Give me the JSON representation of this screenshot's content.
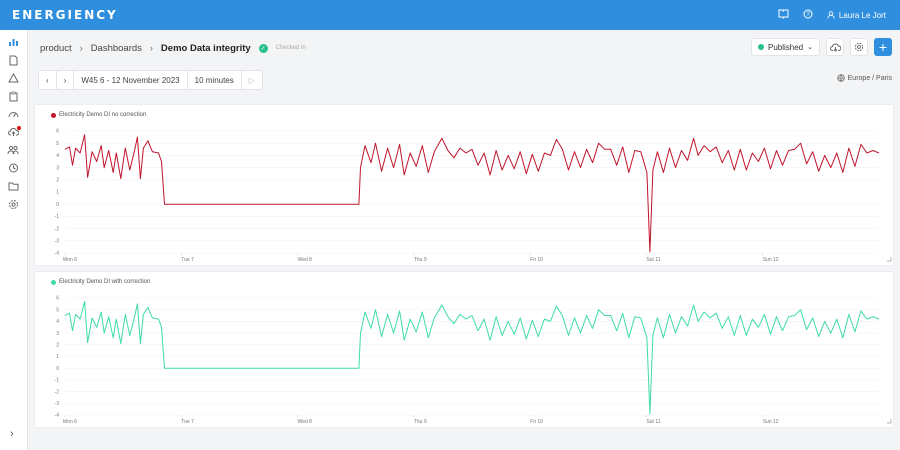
{
  "app": {
    "logo": "ENERGIENCY",
    "help_icon": "question-circle-icon",
    "docs_icon": "book-icon",
    "user_name": "Laura Le Jort"
  },
  "breadcrumb": {
    "items": [
      "product",
      "Dashboards",
      "Demo Data integrity"
    ],
    "status": "Checked in"
  },
  "header": {
    "publish_label": "Published",
    "publish_color": "#27c08a"
  },
  "timebar": {
    "period": "W45 6 - 12 November 2023",
    "interval": "10 minutes",
    "timezone": "Europe / Paris"
  },
  "sidebar": {
    "icons": [
      "dashboard-icon",
      "document-icon",
      "alert-icon",
      "clipboard-icon",
      "gauge-icon",
      "cloud-upload-icon",
      "users-icon",
      "history-icon",
      "folder-icon",
      "settings-icon"
    ]
  },
  "chart_data": [
    {
      "type": "line",
      "series": [
        {
          "name": "Electricity Demo DI no correction",
          "color": "#c0142b"
        }
      ],
      "x_ticks": [
        "Mon 6",
        "Tue 7",
        "Wed 8",
        "Thu 9",
        "Fri 10",
        "Sat 11",
        "Sun 12"
      ],
      "y_ticks": [
        "6",
        "5",
        "4",
        "3",
        "2",
        "1",
        "0",
        "-1",
        "-2",
        "-3",
        "-4"
      ],
      "ylim": [
        -4,
        6
      ],
      "points": [
        [
          0,
          4.5
        ],
        [
          0.3,
          4.7
        ],
        [
          0.5,
          3.2
        ],
        [
          0.7,
          4.6
        ],
        [
          1,
          4.2
        ],
        [
          1.3,
          5.7
        ],
        [
          1.5,
          2.2
        ],
        [
          1.8,
          4.3
        ],
        [
          2.1,
          3.5
        ],
        [
          2.4,
          4.8
        ],
        [
          2.6,
          3.0
        ],
        [
          2.9,
          4.4
        ],
        [
          3.2,
          2.6
        ],
        [
          3.4,
          4.2
        ],
        [
          3.7,
          2.1
        ],
        [
          4.0,
          4.6
        ],
        [
          4.3,
          2.8
        ],
        [
          4.6,
          4.3
        ],
        [
          4.8,
          5.5
        ],
        [
          5.0,
          2.1
        ],
        [
          5.2,
          4.6
        ],
        [
          5.5,
          5.2
        ],
        [
          5.8,
          4.3
        ],
        [
          6.2,
          4.2
        ],
        [
          6.4,
          3.5
        ],
        [
          6.6,
          0
        ],
        [
          12,
          0
        ],
        [
          18,
          0
        ],
        [
          19.5,
          0
        ],
        [
          19.6,
          3.0
        ],
        [
          19.9,
          4.8
        ],
        [
          20.3,
          3.4
        ],
        [
          20.6,
          5.0
        ],
        [
          21.0,
          2.7
        ],
        [
          21.4,
          4.6
        ],
        [
          21.8,
          3.0
        ],
        [
          22.2,
          4.9
        ],
        [
          22.5,
          2.4
        ],
        [
          22.9,
          4.2
        ],
        [
          23.3,
          3.1
        ],
        [
          23.7,
          4.8
        ],
        [
          24.1,
          2.6
        ],
        [
          24.5,
          4.3
        ],
        [
          25.0,
          5.4
        ],
        [
          25.4,
          4.4
        ],
        [
          25.8,
          3.8
        ],
        [
          26.2,
          4.6
        ],
        [
          26.6,
          4.2
        ],
        [
          27.0,
          4.5
        ],
        [
          27.4,
          3.2
        ],
        [
          27.8,
          4.2
        ],
        [
          28.2,
          2.4
        ],
        [
          28.6,
          4.4
        ],
        [
          29.0,
          2.8
        ],
        [
          29.4,
          4.0
        ],
        [
          29.8,
          2.9
        ],
        [
          30.2,
          4.3
        ],
        [
          30.6,
          2.5
        ],
        [
          31.0,
          4.1
        ],
        [
          31.4,
          2.7
        ],
        [
          31.8,
          4.2
        ],
        [
          32.2,
          4.0
        ],
        [
          32.6,
          5.3
        ],
        [
          33.0,
          4.5
        ],
        [
          33.4,
          2.8
        ],
        [
          33.8,
          4.3
        ],
        [
          34.2,
          3.0
        ],
        [
          34.6,
          4.5
        ],
        [
          35.0,
          3.4
        ],
        [
          35.4,
          5.0
        ],
        [
          35.8,
          4.5
        ],
        [
          36.2,
          4.5
        ],
        [
          36.6,
          3.2
        ],
        [
          37.0,
          4.7
        ],
        [
          37.4,
          2.6
        ],
        [
          37.8,
          4.4
        ],
        [
          38.2,
          4.3
        ],
        [
          38.6,
          2.6
        ],
        [
          38.8,
          -3.9
        ],
        [
          39.0,
          2.8
        ],
        [
          39.3,
          4.3
        ],
        [
          39.7,
          2.6
        ],
        [
          40.1,
          4.6
        ],
        [
          40.5,
          3.0
        ],
        [
          40.9,
          4.4
        ],
        [
          41.3,
          3.6
        ],
        [
          41.7,
          5.4
        ],
        [
          42.0,
          4.0
        ],
        [
          42.4,
          4.8
        ],
        [
          42.8,
          4.3
        ],
        [
          43.2,
          4.7
        ],
        [
          43.6,
          3.4
        ],
        [
          44.0,
          4.4
        ],
        [
          44.4,
          2.8
        ],
        [
          44.8,
          4.5
        ],
        [
          45.2,
          2.8
        ],
        [
          45.6,
          4.2
        ],
        [
          46.0,
          3.5
        ],
        [
          46.4,
          4.6
        ],
        [
          46.8,
          2.9
        ],
        [
          47.2,
          4.4
        ],
        [
          47.6,
          3.2
        ],
        [
          48.0,
          4.4
        ],
        [
          48.4,
          4.5
        ],
        [
          48.8,
          5.0
        ],
        [
          49.2,
          3.3
        ],
        [
          49.6,
          4.3
        ],
        [
          50.0,
          2.7
        ],
        [
          50.4,
          4.0
        ],
        [
          50.8,
          3.0
        ],
        [
          51.2,
          4.2
        ],
        [
          51.6,
          2.6
        ],
        [
          52.0,
          4.6
        ],
        [
          52.4,
          3.1
        ],
        [
          52.8,
          4.9
        ],
        [
          53.2,
          4.2
        ],
        [
          53.6,
          4.4
        ],
        [
          54.0,
          4.2
        ]
      ]
    },
    {
      "type": "line",
      "series": [
        {
          "name": "Electricity Demo DI with correction",
          "color": "#3ddca8"
        }
      ],
      "x_ticks": [
        "Mon 6",
        "Tue 7",
        "Wed 8",
        "Thu 9",
        "Fri 10",
        "Sat 11",
        "Sun 12"
      ],
      "y_ticks": [
        "6",
        "5",
        "4",
        "3",
        "2",
        "1",
        "0",
        "-1",
        "-2",
        "-3",
        "-4"
      ],
      "ylim": [
        -4,
        6
      ],
      "points": [
        [
          0,
          4.5
        ],
        [
          0.3,
          4.7
        ],
        [
          0.5,
          3.2
        ],
        [
          0.7,
          4.6
        ],
        [
          1,
          4.2
        ],
        [
          1.3,
          5.7
        ],
        [
          1.5,
          2.2
        ],
        [
          1.8,
          4.3
        ],
        [
          2.1,
          3.5
        ],
        [
          2.4,
          4.8
        ],
        [
          2.6,
          3.0
        ],
        [
          2.9,
          4.4
        ],
        [
          3.2,
          2.6
        ],
        [
          3.4,
          4.2
        ],
        [
          3.7,
          2.1
        ],
        [
          4.0,
          4.6
        ],
        [
          4.3,
          2.8
        ],
        [
          4.6,
          4.3
        ],
        [
          4.8,
          5.5
        ],
        [
          5.0,
          2.1
        ],
        [
          5.2,
          4.6
        ],
        [
          5.5,
          5.2
        ],
        [
          5.8,
          4.3
        ],
        [
          6.2,
          4.2
        ],
        [
          6.4,
          3.5
        ],
        [
          6.6,
          0
        ],
        [
          12,
          0
        ],
        [
          18,
          0
        ],
        [
          19.5,
          0
        ],
        [
          19.6,
          3.0
        ],
        [
          19.9,
          4.8
        ],
        [
          20.3,
          3.4
        ],
        [
          20.6,
          5.0
        ],
        [
          21.0,
          2.7
        ],
        [
          21.4,
          4.6
        ],
        [
          21.8,
          3.0
        ],
        [
          22.2,
          4.9
        ],
        [
          22.5,
          2.4
        ],
        [
          22.9,
          4.2
        ],
        [
          23.3,
          3.1
        ],
        [
          23.7,
          4.8
        ],
        [
          24.1,
          2.6
        ],
        [
          24.5,
          4.3
        ],
        [
          25.0,
          5.4
        ],
        [
          25.4,
          4.4
        ],
        [
          25.8,
          3.8
        ],
        [
          26.2,
          4.6
        ],
        [
          26.6,
          4.2
        ],
        [
          27.0,
          4.5
        ],
        [
          27.4,
          3.2
        ],
        [
          27.8,
          4.2
        ],
        [
          28.2,
          2.4
        ],
        [
          28.6,
          4.4
        ],
        [
          29.0,
          2.8
        ],
        [
          29.4,
          4.0
        ],
        [
          29.8,
          2.9
        ],
        [
          30.2,
          4.3
        ],
        [
          30.6,
          2.5
        ],
        [
          31.0,
          4.1
        ],
        [
          31.4,
          2.7
        ],
        [
          31.8,
          4.2
        ],
        [
          32.2,
          4.0
        ],
        [
          32.6,
          5.3
        ],
        [
          33.0,
          4.5
        ],
        [
          33.4,
          2.8
        ],
        [
          33.8,
          4.3
        ],
        [
          34.2,
          3.0
        ],
        [
          34.6,
          4.5
        ],
        [
          35.0,
          3.4
        ],
        [
          35.4,
          5.0
        ],
        [
          35.8,
          4.5
        ],
        [
          36.2,
          4.5
        ],
        [
          36.6,
          3.2
        ],
        [
          37.0,
          4.7
        ],
        [
          37.4,
          2.6
        ],
        [
          37.8,
          4.4
        ],
        [
          38.2,
          4.3
        ],
        [
          38.6,
          2.6
        ],
        [
          38.8,
          -3.9
        ],
        [
          39.0,
          2.8
        ],
        [
          39.3,
          4.3
        ],
        [
          39.7,
          2.6
        ],
        [
          40.1,
          4.6
        ],
        [
          40.5,
          3.0
        ],
        [
          40.9,
          4.4
        ],
        [
          41.3,
          3.6
        ],
        [
          41.7,
          5.4
        ],
        [
          42.0,
          4.0
        ],
        [
          42.4,
          4.8
        ],
        [
          42.8,
          4.3
        ],
        [
          43.2,
          4.7
        ],
        [
          43.6,
          3.4
        ],
        [
          44.0,
          4.4
        ],
        [
          44.4,
          2.8
        ],
        [
          44.8,
          4.5
        ],
        [
          45.2,
          2.8
        ],
        [
          45.6,
          4.2
        ],
        [
          46.0,
          3.5
        ],
        [
          46.4,
          4.6
        ],
        [
          46.8,
          2.9
        ],
        [
          47.2,
          4.4
        ],
        [
          47.6,
          3.2
        ],
        [
          48.0,
          4.4
        ],
        [
          48.4,
          4.5
        ],
        [
          48.8,
          5.0
        ],
        [
          49.2,
          3.3
        ],
        [
          49.6,
          4.3
        ],
        [
          50.0,
          2.7
        ],
        [
          50.4,
          4.0
        ],
        [
          50.8,
          3.0
        ],
        [
          51.2,
          4.2
        ],
        [
          51.6,
          2.6
        ],
        [
          52.0,
          4.6
        ],
        [
          52.4,
          3.1
        ],
        [
          52.8,
          4.9
        ],
        [
          53.2,
          4.2
        ],
        [
          53.6,
          4.4
        ],
        [
          54.0,
          4.2
        ]
      ]
    }
  ]
}
